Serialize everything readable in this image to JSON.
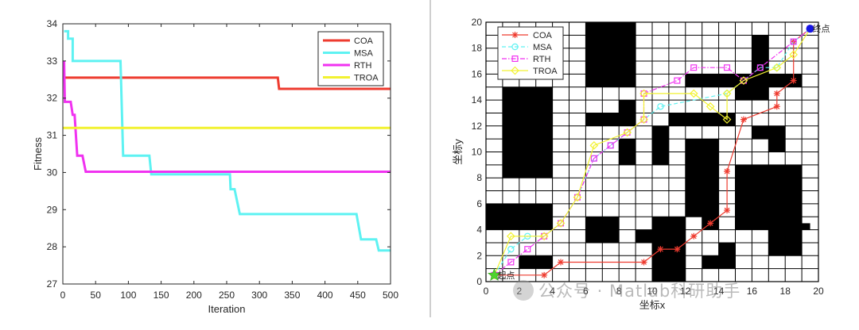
{
  "chart_data": [
    {
      "type": "line",
      "title": "",
      "xlabel": "Iteration",
      "ylabel": "Fitness",
      "xlim": [
        0,
        500
      ],
      "ylim": [
        27,
        34
      ],
      "xticks": [
        "0",
        "50",
        "100",
        "150",
        "200",
        "250",
        "300",
        "350",
        "400",
        "450",
        "500"
      ],
      "yticks": [
        "27",
        "28",
        "29",
        "30",
        "31",
        "32",
        "33",
        "34"
      ],
      "grid": false,
      "legend_position": "top-right",
      "series": [
        {
          "name": "COA",
          "color": "#ee3b2f",
          "points": [
            [
              0,
              32.55
            ],
            [
              328,
              32.55
            ],
            [
              330,
              32.25
            ],
            [
              500,
              32.25
            ]
          ]
        },
        {
          "name": "MSA",
          "color": "#5ef2f2",
          "points": [
            [
              2,
              33.8
            ],
            [
              8,
              33.8
            ],
            [
              8,
              33.6
            ],
            [
              15,
              33.6
            ],
            [
              15,
              33.0
            ],
            [
              88,
              33.0
            ],
            [
              92,
              30.45
            ],
            [
              132,
              30.45
            ],
            [
              135,
              29.95
            ],
            [
              255,
              29.95
            ],
            [
              256,
              29.55
            ],
            [
              262,
              29.55
            ],
            [
              270,
              28.88
            ],
            [
              448,
              28.88
            ],
            [
              455,
              28.2
            ],
            [
              478,
              28.2
            ],
            [
              482,
              27.9
            ],
            [
              500,
              27.9
            ]
          ]
        },
        {
          "name": "RTH",
          "color": "#f032f0",
          "points": [
            [
              2,
              33.0
            ],
            [
              3,
              31.9
            ],
            [
              12,
              31.9
            ],
            [
              15,
              31.55
            ],
            [
              18,
              31.55
            ],
            [
              22,
              30.45
            ],
            [
              30,
              30.45
            ],
            [
              35,
              30.02
            ],
            [
              500,
              30.02
            ]
          ]
        },
        {
          "name": "TROA",
          "color": "#f2f230",
          "points": [
            [
              0,
              31.2
            ],
            [
              500,
              31.2
            ]
          ]
        }
      ]
    },
    {
      "type": "line",
      "title": "",
      "xlabel": "坐标x",
      "ylabel": "坐标y",
      "xlim": [
        0,
        20
      ],
      "ylim": [
        0,
        20
      ],
      "xticks": [
        "0",
        "2",
        "4",
        "6",
        "8",
        "10",
        "12",
        "14",
        "16",
        "18",
        "20"
      ],
      "yticks": [
        "0",
        "2",
        "4",
        "6",
        "8",
        "10",
        "12",
        "14",
        "16",
        "18",
        "20"
      ],
      "grid": true,
      "legend_position": "top-left",
      "start_label": "起点",
      "end_label": "终点",
      "start_point": [
        0.5,
        0.5
      ],
      "end_point": [
        19.5,
        19.5
      ],
      "obstacles": [
        [
          6,
          15,
          9,
          20
        ],
        [
          1,
          8,
          4,
          15
        ],
        [
          0,
          4,
          4,
          6
        ],
        [
          6,
          3,
          8,
          5
        ],
        [
          2,
          1,
          4,
          2
        ],
        [
          9,
          3,
          11,
          4
        ],
        [
          10,
          0,
          12,
          5
        ],
        [
          13,
          1,
          15,
          2
        ],
        [
          14,
          2,
          15,
          3
        ],
        [
          16,
          16,
          17,
          19
        ],
        [
          15,
          15,
          19,
          16
        ],
        [
          15,
          14,
          17,
          15
        ],
        [
          12,
          15,
          15,
          16
        ],
        [
          6,
          12,
          9,
          13
        ],
        [
          8,
          12,
          9,
          14
        ],
        [
          8,
          9,
          9,
          11
        ],
        [
          10,
          9,
          11,
          12
        ],
        [
          11,
          12,
          15,
          13
        ],
        [
          12,
          9,
          13,
          11
        ],
        [
          12,
          5,
          14,
          11
        ],
        [
          13,
          4,
          14,
          5
        ],
        [
          15,
          4,
          19,
          9
        ],
        [
          17,
          10,
          18,
          12
        ],
        [
          16,
          11,
          18,
          12
        ],
        [
          17,
          2,
          19,
          4
        ],
        [
          19,
          4,
          19.5,
          4.5
        ]
      ],
      "series": [
        {
          "name": "COA",
          "color": "#ee3b2f",
          "marker": "star",
          "points": [
            [
              0.5,
              0.5
            ],
            [
              3.5,
              0.5
            ],
            [
              4.5,
              1.5
            ],
            [
              9.5,
              1.5
            ],
            [
              10.5,
              2.5
            ],
            [
              11.5,
              2.5
            ],
            [
              12.5,
              3.5
            ],
            [
              13.5,
              4.5
            ],
            [
              14.5,
              5.5
            ],
            [
              14.5,
              8.5
            ],
            [
              15.5,
              12.5
            ],
            [
              17.5,
              13.5
            ],
            [
              17.5,
              14.5
            ],
            [
              18.5,
              15.5
            ],
            [
              18.5,
              18.5
            ],
            [
              19.5,
              19.5
            ]
          ]
        },
        {
          "name": "MSA",
          "color": "#5ef2f2",
          "marker": "circle",
          "points": [
            [
              0.5,
              0.5
            ],
            [
              1.5,
              2.5
            ],
            [
              2.5,
              3.5
            ],
            [
              3.5,
              3.5
            ],
            [
              4.5,
              4.5
            ],
            [
              5.5,
              6.5
            ],
            [
              6.5,
              9.5
            ],
            [
              7.5,
              10.5
            ],
            [
              8.5,
              11.5
            ],
            [
              9.5,
              12.5
            ],
            [
              10.5,
              13.5
            ],
            [
              14.5,
              14.5
            ],
            [
              15.5,
              15.5
            ],
            [
              16.5,
              16.5
            ],
            [
              17.5,
              16.5
            ],
            [
              18.5,
              18.5
            ],
            [
              19.5,
              19.5
            ]
          ]
        },
        {
          "name": "RTH",
          "color": "#f032f0",
          "marker": "square",
          "points": [
            [
              0.5,
              0.5
            ],
            [
              1.5,
              1.5
            ],
            [
              2.5,
              2.5
            ],
            [
              3.5,
              3.5
            ],
            [
              4.5,
              4.5
            ],
            [
              5.5,
              6.5
            ],
            [
              6.5,
              9.5
            ],
            [
              7.5,
              10.5
            ],
            [
              8.5,
              11.5
            ],
            [
              9.5,
              12.5
            ],
            [
              9.5,
              14.5
            ],
            [
              11.5,
              15.5
            ],
            [
              12.5,
              16.5
            ],
            [
              14.5,
              16.5
            ],
            [
              15.5,
              15.5
            ],
            [
              16.5,
              16.5
            ],
            [
              18.5,
              18.5
            ],
            [
              19.5,
              19.5
            ]
          ]
        },
        {
          "name": "TROA",
          "color": "#f2f230",
          "marker": "diamond",
          "points": [
            [
              0.5,
              0.5
            ],
            [
              1.5,
              3.5
            ],
            [
              3.5,
              3.5
            ],
            [
              4.5,
              4.5
            ],
            [
              5.5,
              6.5
            ],
            [
              6.5,
              10.5
            ],
            [
              8.5,
              11.5
            ],
            [
              9.5,
              12.5
            ],
            [
              9.5,
              14.5
            ],
            [
              12.5,
              14.5
            ],
            [
              13.5,
              13.5
            ],
            [
              14.5,
              12.5
            ],
            [
              14.5,
              14.5
            ],
            [
              15.5,
              15.5
            ],
            [
              17.5,
              16.5
            ],
            [
              18.5,
              17.5
            ],
            [
              19.5,
              19.5
            ]
          ]
        }
      ]
    }
  ],
  "watermark": {
    "text": "公众号 · Matlab科研助手"
  }
}
